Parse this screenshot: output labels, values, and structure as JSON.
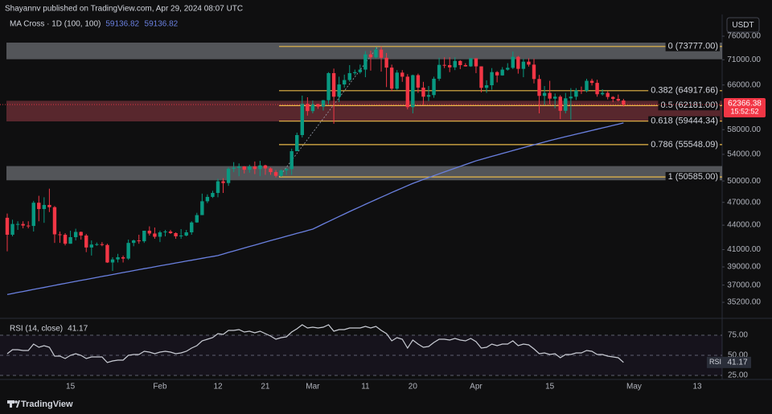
{
  "header": {
    "byline": "Shayannv published on TradingView.com, Apr 29, 2024 08:07 UTC"
  },
  "footer": {
    "brand": "TradingView"
  },
  "chart_data": [
    {
      "type": "candlestick",
      "title": "MA Cross · 1D (100, 100)",
      "currency": "USDT",
      "countdown": "15:52:52",
      "log_scale": true,
      "up_color": "#089981",
      "down_color": "#f23645",
      "categories": [
        null,
        null,
        null,
        null,
        null,
        null,
        null,
        null,
        null,
        null,
        null,
        null,
        "15",
        null,
        null,
        null,
        null,
        null,
        null,
        null,
        null,
        null,
        null,
        null,
        null,
        null,
        null,
        null,
        null,
        "Feb",
        null,
        null,
        null,
        null,
        null,
        null,
        null,
        null,
        null,
        null,
        "12",
        null,
        null,
        null,
        null,
        null,
        null,
        null,
        null,
        "21",
        null,
        null,
        null,
        null,
        null,
        null,
        null,
        null,
        "Mar",
        null,
        null,
        null,
        null,
        null,
        null,
        null,
        null,
        null,
        "11",
        null,
        null,
        null,
        null,
        null,
        null,
        null,
        null,
        "20",
        null,
        null,
        null,
        null,
        null,
        null,
        null,
        null,
        null,
        null,
        null,
        "Apr",
        null,
        null,
        null,
        null,
        null,
        null,
        null,
        null,
        null,
        null,
        null,
        null,
        null,
        "15",
        null,
        null,
        null,
        null,
        null,
        null,
        null,
        null,
        null,
        null,
        null,
        null,
        null,
        null,
        null,
        "May",
        null,
        null,
        null,
        null,
        null,
        null,
        null,
        null,
        null,
        null,
        null,
        "13",
        null,
        null,
        null,
        null
      ],
      "open": [
        44950,
        42800,
        44150,
        44150,
        43950,
        43900,
        46950,
        46100,
        46650,
        46350,
        42850,
        42800,
        41700,
        42500,
        43150,
        42700,
        41250,
        41600,
        41650,
        41550,
        39500,
        39850,
        40100,
        39950,
        41800,
        42100,
        42000,
        43300,
        42950,
        42550,
        43100,
        43200,
        43000,
        42600,
        42700,
        43100,
        44350,
        45300,
        47150,
        47750,
        48300,
        49950,
        49700,
        51800,
        51950,
        52150,
        51650,
        52150,
        51750,
        52300,
        51850,
        51300,
        50750,
        51550,
        51750,
        54500,
        57100,
        62500,
        61200,
        62450,
        62000,
        63150,
        68300,
        63800,
        66100,
        66950,
        68300,
        68500,
        69000,
        72100,
        71500,
        73100,
        71400,
        69400,
        65300,
        68400,
        67600,
        61900,
        67900,
        65500,
        63800,
        64100,
        67200,
        69950,
        69900,
        69450,
        70750,
        69900,
        69650,
        71300,
        69650,
        65450,
        65950,
        68500,
        67850,
        69000,
        69350,
        71600,
        69150,
        70600,
        70000,
        67150,
        63950,
        64500,
        63450,
        63800,
        61250,
        63500,
        63800,
        64950,
        64900,
        66800,
        66400,
        64250,
        64500,
        63750,
        63400,
        63100,
        null,
        null,
        null,
        null,
        null,
        null,
        null,
        null,
        null,
        null,
        null,
        null,
        null,
        null,
        null,
        null,
        null,
        null
      ],
      "high": [
        45500,
        44700,
        44500,
        44500,
        44500,
        47200,
        47900,
        47700,
        48900,
        46500,
        43200,
        43000,
        43300,
        43550,
        43200,
        42900,
        42100,
        41850,
        41900,
        41700,
        40100,
        40500,
        40300,
        42200,
        42200,
        42800,
        43300,
        43850,
        43700,
        43300,
        43400,
        43400,
        43100,
        43500,
        43400,
        44500,
        45600,
        48200,
        48100,
        48600,
        50300,
        50400,
        52000,
        52800,
        52600,
        52200,
        52400,
        52900,
        53000,
        52400,
        52000,
        51600,
        51700,
        51900,
        54900,
        57500,
        64000,
        63700,
        63100,
        62500,
        63200,
        68500,
        69200,
        67600,
        68000,
        69900,
        69000,
        70000,
        72800,
        72900,
        73650,
        73777,
        72400,
        70000,
        68900,
        68900,
        68100,
        68000,
        68200,
        66600,
        65800,
        67600,
        71400,
        71500,
        71500,
        71500,
        70900,
        70300,
        71300,
        71300,
        69650,
        66900,
        69300,
        68700,
        69500,
        70300,
        72700,
        71800,
        71200,
        71300,
        71200,
        67950,
        65800,
        66800,
        64400,
        64100,
        64500,
        65400,
        65400,
        65700,
        67200,
        67200,
        67000,
        65200,
        64800,
        63900,
        64200,
        63400,
        null,
        null,
        null,
        null,
        null,
        null,
        null,
        null,
        null,
        null,
        null,
        null,
        null,
        null,
        null,
        null,
        null,
        null
      ],
      "low": [
        40800,
        42600,
        43400,
        43600,
        43600,
        43200,
        44500,
        44300,
        45700,
        41800,
        41800,
        41500,
        41700,
        42100,
        42200,
        40700,
        40300,
        41450,
        41400,
        39450,
        38550,
        39500,
        39500,
        39800,
        41400,
        41700,
        41800,
        42700,
        42300,
        41900,
        42600,
        42900,
        42300,
        42300,
        42600,
        42800,
        44300,
        45300,
        46900,
        47600,
        47700,
        48300,
        49300,
        51300,
        50700,
        51100,
        51200,
        51000,
        50700,
        50900,
        50900,
        50500,
        50600,
        50900,
        50900,
        54500,
        56700,
        60400,
        60800,
        61600,
        61300,
        62400,
        59000,
        62800,
        65500,
        66600,
        67900,
        68200,
        67500,
        68800,
        71300,
        68600,
        65600,
        64800,
        65100,
        66600,
        61500,
        60800,
        64500,
        62300,
        63000,
        63600,
        66800,
        69300,
        68500,
        68900,
        69100,
        69600,
        69550,
        68300,
        64600,
        64500,
        65100,
        66500,
        67800,
        68800,
        69100,
        68200,
        67500,
        69600,
        66300,
        60800,
        62300,
        62400,
        61700,
        59800,
        60800,
        59700,
        63200,
        64300,
        64600,
        65900,
        63800,
        64000,
        63300,
        62800,
        62900,
        62000,
        null,
        null,
        null,
        null,
        null,
        null,
        null,
        null,
        null,
        null,
        null,
        null,
        null,
        null,
        null,
        null,
        null,
        null
      ],
      "close": [
        42800,
        44150,
        44150,
        43950,
        43900,
        46950,
        46100,
        46650,
        46350,
        42850,
        42800,
        41700,
        42500,
        43150,
        42700,
        41250,
        41600,
        41650,
        41550,
        39500,
        39850,
        40100,
        39950,
        41800,
        42100,
        42000,
        43300,
        42950,
        42550,
        43100,
        43200,
        43000,
        42600,
        42700,
        43100,
        44350,
        45300,
        47150,
        47750,
        48300,
        49950,
        49700,
        51800,
        51950,
        52150,
        51650,
        52150,
        51750,
        52300,
        51850,
        51300,
        50750,
        51550,
        51750,
        54500,
        57100,
        62500,
        61200,
        62450,
        62000,
        63150,
        68300,
        63800,
        66100,
        66950,
        68300,
        68500,
        69000,
        72100,
        71500,
        73100,
        71400,
        69400,
        65300,
        68400,
        67600,
        61900,
        67900,
        65500,
        63800,
        64100,
        67200,
        69950,
        69900,
        69450,
        70750,
        69900,
        69650,
        71300,
        69650,
        65450,
        65950,
        68500,
        67850,
        69000,
        69350,
        71600,
        69150,
        70600,
        70000,
        67150,
        63950,
        64500,
        63450,
        63800,
        61250,
        63500,
        63800,
        64950,
        64900,
        66800,
        66400,
        64250,
        64500,
        63750,
        63400,
        63100,
        62366.38,
        null,
        null,
        null,
        null,
        null,
        null,
        null,
        null,
        null,
        null,
        null,
        null,
        null,
        null,
        null,
        null,
        null,
        null
      ],
      "ma": {
        "color": "#6a80e0",
        "values": [
          36000,
          36110,
          36220,
          36320,
          36430,
          36540,
          36650,
          36750,
          36860,
          36970,
          37080,
          37180,
          37290,
          37400,
          37510,
          37610,
          37720,
          37830,
          37940,
          38040,
          38150,
          38260,
          38370,
          38470,
          38580,
          38690,
          38800,
          38900,
          39010,
          39120,
          39230,
          39330,
          39440,
          39550,
          39660,
          39760,
          39870,
          39980,
          40090,
          40190,
          40300,
          40480,
          40660,
          40830,
          41010,
          41190,
          41370,
          41540,
          41720,
          41900,
          42080,
          42260,
          42430,
          42610,
          42790,
          42970,
          43140,
          43320,
          43500,
          43820,
          44150,
          44470,
          44790,
          45120,
          45440,
          45770,
          46090,
          46410,
          46740,
          47060,
          47380,
          47710,
          48030,
          48360,
          48680,
          49000,
          49330,
          49650,
          49930,
          50210,
          50490,
          50770,
          51050,
          51330,
          51600,
          51880,
          52160,
          52440,
          52720,
          53000,
          53230,
          53460,
          53690,
          53910,
          54140,
          54370,
          54600,
          54830,
          55060,
          55290,
          55510,
          55740,
          55970,
          56200,
          56410,
          56620,
          56830,
          57040,
          57250,
          57450,
          57660,
          57870,
          58080,
          58290,
          58500,
          58710,
          58920,
          59136.82,
          null,
          null,
          null,
          null,
          null,
          null,
          null,
          null,
          null,
          null,
          null,
          null,
          null,
          null,
          null,
          null,
          null,
          null
        ]
      },
      "zones": [
        {
          "high": 74600,
          "low": 71100,
          "color": "rgba(140,143,150,0.55)"
        },
        {
          "high": 63050,
          "low": 59400,
          "color": "rgba(150,60,70,0.55)"
        },
        {
          "high": 52200,
          "low": 50100,
          "color": "rgba(140,143,150,0.55)"
        }
      ],
      "fib_color": "#e9b949",
      "fib_levels": [
        {
          "label": "0 (73777.00)",
          "value": 73777
        },
        {
          "label": "0.382 (64917.66)",
          "value": 64917.66
        },
        {
          "label": "0.5 (62181.00)",
          "value": 62181
        },
        {
          "label": "0.618 (59444.34)",
          "value": 59444.34
        },
        {
          "label": "0.786 (55548.09)",
          "value": 55548.09
        },
        {
          "label": "1 (50585.00)",
          "value": 50585
        }
      ],
      "ylim": [
        34000,
        77000
      ],
      "yticks": [
        {
          "value": 76000,
          "label": "76000.00"
        },
        {
          "value": 71000,
          "label": "71000.00"
        },
        {
          "value": 66000,
          "label": "66000.00"
        },
        {
          "value": 58000,
          "label": "58000.00"
        },
        {
          "value": 54000,
          "label": "54000.00"
        },
        {
          "value": 50000,
          "label": "50000.00"
        },
        {
          "value": 47000,
          "label": "47000.00"
        },
        {
          "value": 44000,
          "label": "44000.00"
        },
        {
          "value": 41000,
          "label": "41000.00"
        },
        {
          "value": 39000,
          "label": "39000.00"
        },
        {
          "value": 37000,
          "label": "37000.00"
        },
        {
          "value": 35200,
          "label": "35200.00"
        }
      ]
    },
    {
      "type": "line",
      "title": "RSI (14, close)",
      "tag": "RSI",
      "color": "#c9ccd4",
      "values": [
        52,
        57,
        57,
        56,
        56,
        64,
        60,
        62,
        60,
        49,
        49,
        46,
        50,
        52,
        50,
        46,
        48,
        48,
        48,
        41,
        43,
        44,
        44,
        50,
        51,
        51,
        55,
        54,
        52,
        54,
        55,
        54,
        52,
        53,
        55,
        59,
        62,
        68,
        70,
        72,
        77,
        76,
        81,
        81,
        82,
        79,
        80,
        78,
        80,
        77,
        74,
        70,
        72,
        73,
        79,
        83,
        88,
        84,
        85,
        84,
        85,
        88,
        80,
        82,
        82,
        84,
        84,
        84,
        86,
        84,
        86,
        81,
        77,
        68,
        72,
        70,
        59,
        69,
        64,
        60,
        61,
        66,
        70,
        70,
        69,
        71,
        69,
        68,
        71,
        67,
        59,
        60,
        64,
        62,
        64,
        64,
        68,
        62,
        64,
        63,
        58,
        52,
        53,
        51,
        52,
        47,
        51,
        51,
        53,
        53,
        56,
        55,
        51,
        51,
        49,
        48,
        47,
        41.17,
        null,
        null,
        null,
        null,
        null,
        null,
        null,
        null,
        null,
        null,
        null,
        null,
        null,
        null,
        null,
        null,
        null,
        null
      ],
      "ylim": [
        20,
        94
      ],
      "yticks": [
        {
          "value": 75,
          "label": "75.00"
        },
        {
          "value": 50,
          "label": "50.00"
        },
        {
          "value": 25,
          "label": "25.00"
        }
      ]
    }
  ]
}
